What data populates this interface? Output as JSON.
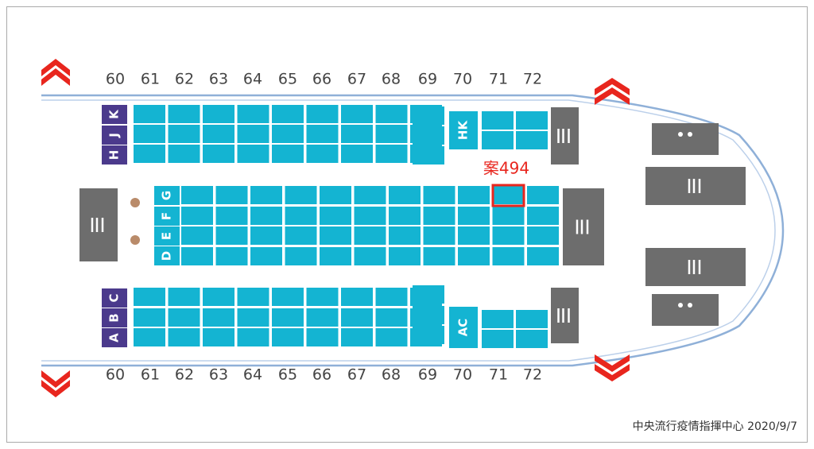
{
  "row_numbers_top": [
    "60",
    "61",
    "62",
    "63",
    "64",
    "65",
    "66",
    "67",
    "68",
    "69",
    "70",
    "71",
    "72"
  ],
  "row_numbers_bottom": [
    "60",
    "61",
    "62",
    "63",
    "64",
    "65",
    "66",
    "67",
    "68",
    "69",
    "70",
    "71",
    "72"
  ],
  "seat_letters": {
    "upper": [
      "H",
      "J",
      "K"
    ],
    "middle": [
      "D",
      "E",
      "F",
      "G"
    ],
    "lower": [
      "A",
      "B",
      "C"
    ],
    "upper_rear": "HK",
    "lower_rear": "AC"
  },
  "case_label": "案494",
  "footer": "中央流行疫情指揮中心  2020/9/7"
}
